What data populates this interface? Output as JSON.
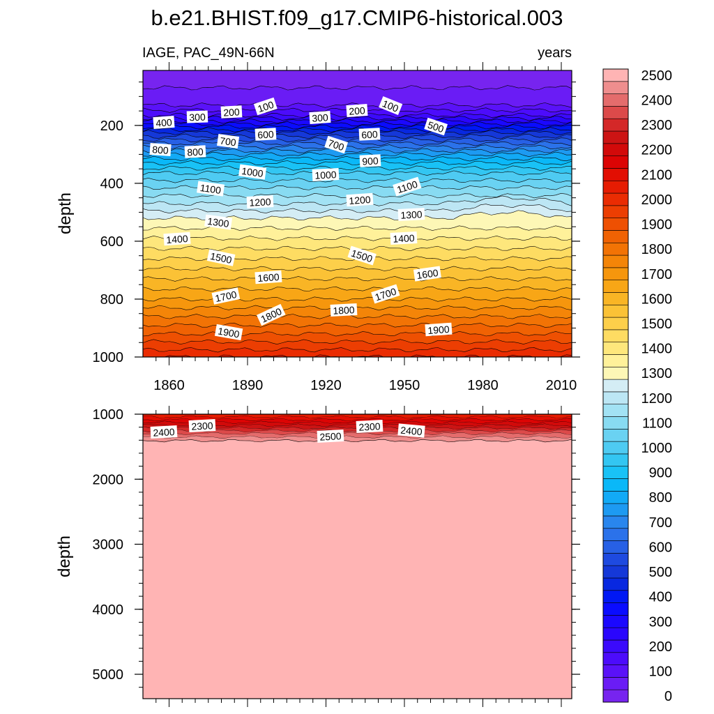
{
  "chart_data": {
    "type": "contour",
    "title": "b.e21.BHIST.f09_g17.CMIP6-historical.003",
    "left_label": "IAGE, PAC_49N-66N",
    "right_label": "years",
    "colorbar": {
      "levels": [
        0,
        50,
        100,
        150,
        200,
        250,
        300,
        350,
        400,
        450,
        500,
        550,
        600,
        650,
        700,
        750,
        800,
        850,
        900,
        950,
        1000,
        1050,
        1100,
        1150,
        1200,
        1250,
        1300,
        1350,
        1400,
        1450,
        1500,
        1550,
        1600,
        1650,
        1700,
        1750,
        1800,
        1850,
        1900,
        1950,
        2000,
        2050,
        2100,
        2150,
        2200,
        2250,
        2300,
        2350,
        2400,
        2450,
        2500
      ],
      "tick_labels": [
        "0",
        "100",
        "200",
        "300",
        "400",
        "500",
        "600",
        "700",
        "800",
        "900",
        "1000",
        "1100",
        "1200",
        "1300",
        "1400",
        "1500",
        "1600",
        "1700",
        "1800",
        "1900",
        "2000",
        "2100",
        "2200",
        "2300",
        "2400",
        "2500"
      ]
    },
    "panels": [
      {
        "name": "upper",
        "ylabel": "depth",
        "ylim": [
          1000,
          10
        ],
        "yticks": [
          "200",
          "400",
          "600",
          "800",
          "1000"
        ],
        "xlim": [
          1850,
          2014
        ],
        "xticks": [
          "1860",
          "1890",
          "1920",
          "1950",
          "1980",
          "2010"
        ],
        "contour_labels": [
          "400",
          "300",
          "200",
          "100",
          "300",
          "200",
          "100",
          "500",
          "800",
          "800",
          "700",
          "600",
          "700",
          "600",
          "900",
          "1000",
          "1000",
          "1100",
          "1200",
          "1200",
          "1100",
          "1300",
          "1300",
          "1400",
          "1400",
          "1500",
          "1500",
          "1600",
          "1600",
          "1700",
          "1700",
          "1800",
          "1800",
          "1900",
          "1900"
        ]
      },
      {
        "name": "lower",
        "ylabel": "depth",
        "ylim": [
          5375,
          1000
        ],
        "yticks": [
          "1000",
          "2000",
          "3000",
          "4000",
          "5000"
        ],
        "xlim": [
          1850,
          2014
        ],
        "contour_labels": [
          "2400",
          "2300",
          "2500",
          "2300",
          "2400"
        ]
      }
    ]
  }
}
